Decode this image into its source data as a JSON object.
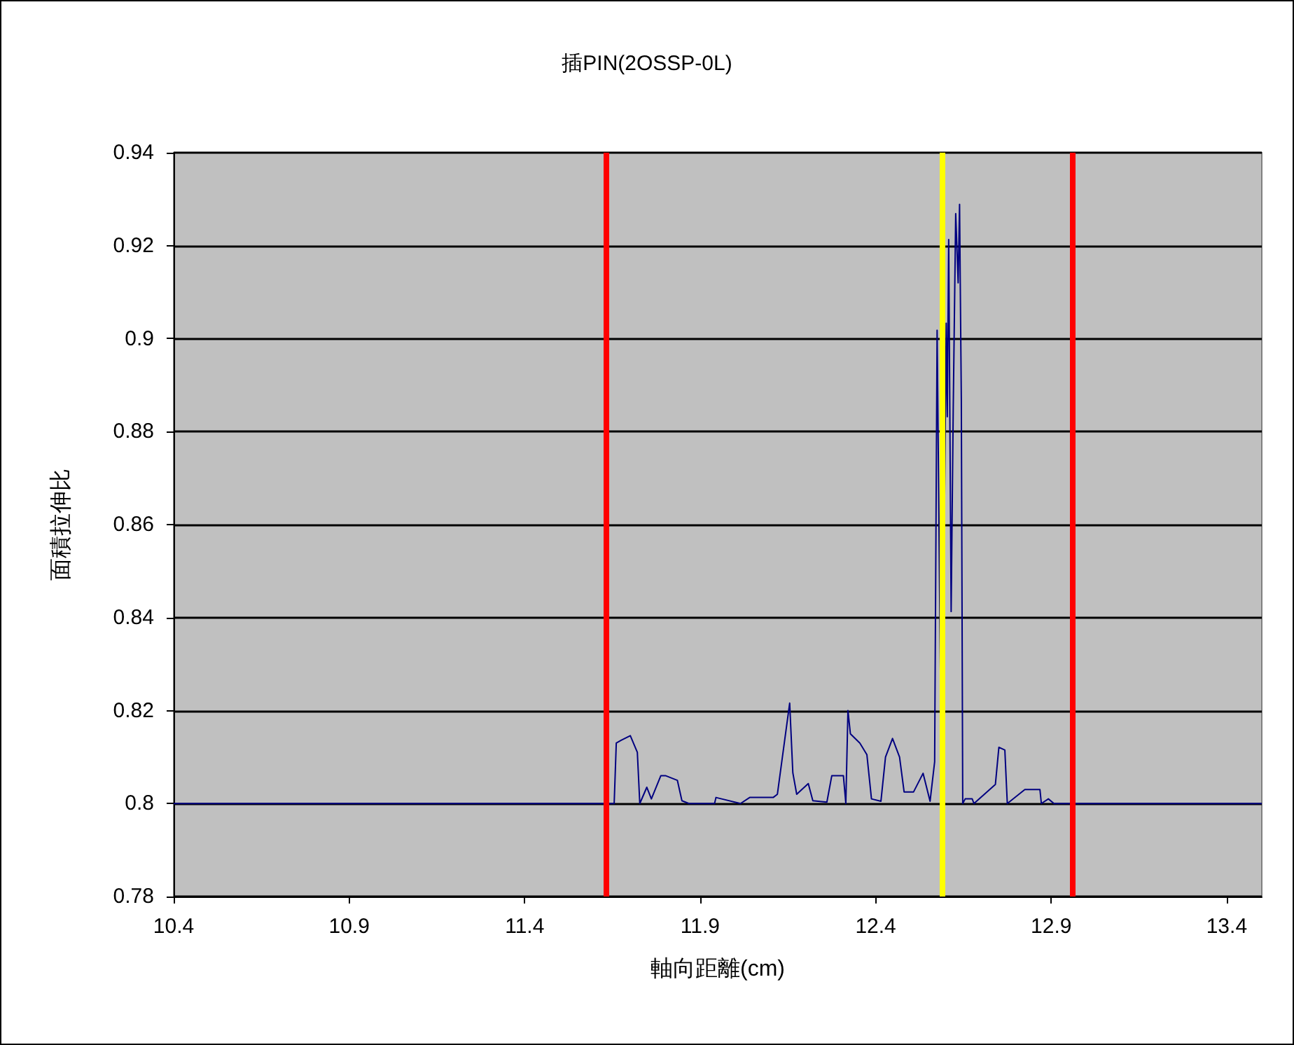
{
  "chart_data": {
    "type": "line",
    "title": "插PIN(2OSSP-0L)",
    "xlabel": "軸向距離(cm)",
    "ylabel": "面積拉伸比",
    "x": [
      10.4,
      11.655,
      11.661,
      11.675,
      11.701,
      11.721,
      11.728,
      11.748,
      11.761,
      11.788,
      11.801,
      11.835,
      11.848,
      11.868,
      11.941,
      11.945,
      12.015,
      12.041,
      12.108,
      12.12,
      12.155,
      12.164,
      12.175,
      12.208,
      12.221,
      12.261,
      12.275,
      12.308,
      12.315,
      12.321,
      12.328,
      12.355,
      12.375,
      12.388,
      12.415,
      12.428,
      12.448,
      12.468,
      12.481,
      12.508,
      12.535,
      12.555,
      12.568,
      12.575,
      12.588,
      12.601,
      12.604,
      12.608,
      12.615,
      12.621,
      12.628,
      12.635,
      12.639,
      12.644,
      12.648,
      12.655,
      12.675,
      12.68,
      12.741,
      12.751,
      12.768,
      12.775,
      12.825,
      12.868,
      12.872,
      12.892,
      12.908,
      13.5
    ],
    "values": [
      0.8,
      0.8,
      0.813,
      0.8136,
      0.8146,
      0.811,
      0.8,
      0.8035,
      0.801,
      0.806,
      0.806,
      0.805,
      0.8006,
      0.8,
      0.8,
      0.8013,
      0.8,
      0.8013,
      0.8013,
      0.802,
      0.8216,
      0.8066,
      0.802,
      0.8043,
      0.8006,
      0.8003,
      0.806,
      0.806,
      0.8,
      0.82,
      0.815,
      0.813,
      0.8105,
      0.801,
      0.8005,
      0.81,
      0.814,
      0.81,
      0.8025,
      0.8025,
      0.8065,
      0.8005,
      0.809,
      0.9018,
      0.8,
      0.9033,
      0.8832,
      0.9213,
      0.8413,
      0.8852,
      0.9269,
      0.912,
      0.9289,
      0.8868,
      0.8,
      0.801,
      0.801,
      0.8,
      0.8041,
      0.8121,
      0.8115,
      0.8,
      0.803,
      0.803,
      0.8,
      0.801,
      0.8,
      0.8
    ],
    "color": "#000080",
    "marker": "none",
    "grid": "y",
    "xlim": [
      10.4,
      13.5
    ],
    "xticks": [
      10.4,
      10.9,
      11.4,
      11.9,
      12.4,
      12.9,
      13.4
    ],
    "ylim": [
      0.78,
      0.94
    ],
    "yticks": [
      0.78,
      0.8,
      0.82,
      0.84,
      0.86,
      0.88,
      0.9,
      0.92,
      0.94
    ],
    "ref_lines": [
      {
        "axis": "x",
        "value": 11.632,
        "color": "#ff0000"
      },
      {
        "axis": "x",
        "value": 12.588,
        "color": "#ffff00"
      },
      {
        "axis": "x",
        "value": 12.956,
        "color": "#ff0000"
      }
    ]
  }
}
